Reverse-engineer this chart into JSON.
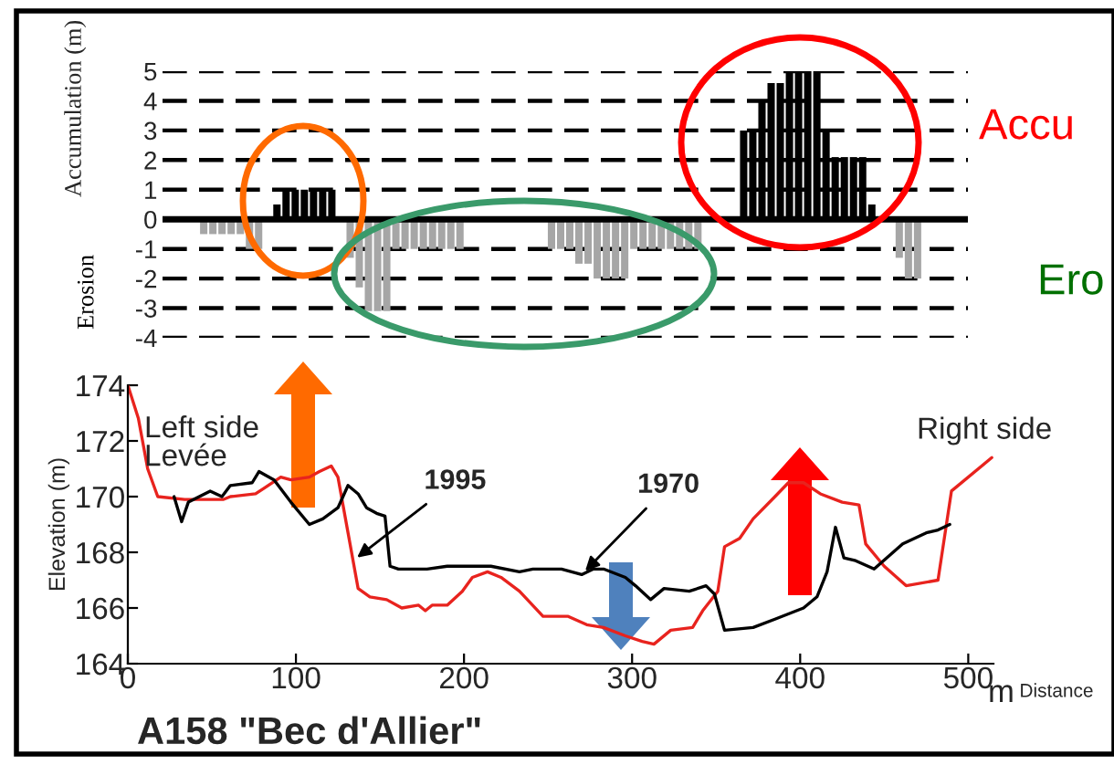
{
  "chart_data": [
    {
      "type": "bar",
      "ylabel": "Accumulation (m)",
      "categories": [
        null,
        null,
        null,
        null,
        null,
        null,
        null,
        null,
        null,
        null,
        null,
        null,
        null,
        null,
        null,
        null,
        null,
        null,
        null,
        null,
        null,
        null,
        null,
        null,
        null,
        null,
        null,
        null,
        null,
        null,
        null,
        null,
        null,
        null,
        null,
        null,
        null,
        null,
        null,
        null,
        null,
        null,
        null,
        null,
        null,
        null,
        null,
        null,
        null,
        null,
        null,
        null,
        null,
        null,
        null,
        null,
        null,
        null,
        null,
        null,
        null,
        null,
        null,
        null,
        null,
        null,
        null,
        null,
        null,
        null,
        null,
        null,
        null,
        null,
        null,
        null,
        null,
        null,
        null,
        null,
        null,
        null,
        null,
        null,
        null,
        null,
        null,
        null
      ],
      "series": [
        {
          "color": "#000000",
          "values": [
            null,
            null,
            null,
            null,
            null,
            null,
            null,
            null,
            null,
            null,
            null,
            null,
            0.5,
            1,
            1,
            1,
            1,
            1,
            1,
            null,
            null,
            null,
            null,
            null,
            null,
            null,
            null,
            null,
            null,
            null,
            null,
            null,
            null,
            null,
            null,
            null,
            null,
            null,
            null,
            null,
            null,
            null,
            null,
            null,
            null,
            null,
            null,
            null,
            null,
            null,
            null,
            null,
            null,
            null,
            null,
            null,
            null,
            null,
            null,
            null,
            null,
            null,
            null,
            3,
            3,
            4,
            4.6,
            4.6,
            5,
            5,
            5,
            5,
            3,
            2.1,
            2.1,
            2.1,
            2.1,
            0.5,
            null,
            null,
            null,
            null,
            null,
            null,
            null,
            null,
            null,
            null
          ]
        },
        {
          "color": "#a6a6a6",
          "values": [
            null,
            null,
            null,
            null,
            -0.5,
            -0.5,
            -0.5,
            -0.5,
            -0.5,
            -1,
            -1,
            null,
            null,
            null,
            null,
            null,
            null,
            null,
            null,
            null,
            -1.3,
            -2.3,
            -3.1,
            -3.1,
            -3.1,
            -1,
            -1,
            -1,
            -1,
            -1,
            -1,
            -1,
            -1,
            null,
            null,
            null,
            null,
            null,
            null,
            null,
            null,
            null,
            -1,
            -1,
            -1,
            -1.5,
            -1.5,
            -2,
            -2,
            -2,
            -2,
            -1,
            -1,
            -1,
            -1,
            -1,
            -1,
            -1,
            -1,
            null,
            null,
            null,
            null,
            null,
            null,
            null,
            null,
            null,
            null,
            null,
            null,
            null,
            null,
            null,
            null,
            null,
            null,
            null,
            null,
            null,
            -1.3,
            -2,
            -2,
            null,
            null,
            null,
            null,
            null
          ]
        }
      ],
      "ylim": [
        -4,
        5
      ],
      "yticks": [
        -4,
        -3,
        -2,
        -1,
        0,
        1,
        2,
        3,
        4,
        5
      ],
      "grid": "y",
      "ref_lines": [
        {
          "axis": "y",
          "value": 0,
          "color": "#000000"
        }
      ],
      "annotations": [
        "Erosion",
        "Accu",
        "Ero"
      ]
    },
    {
      "type": "line",
      "title": "A158 \"Bec d'Allier\"",
      "xlabel": "Distance",
      "ylabel": "Elevation (m)",
      "series": [
        {
          "color": "#e8231e",
          "x": [
            0,
            6.3,
            11.8,
            17.8,
            33.8,
            57,
            61,
            76,
            81,
            91,
            97,
            108,
            114,
            121,
            125,
            131,
            137,
            144,
            154,
            163,
            173,
            177,
            181,
            190,
            199,
            205,
            214,
            222,
            233,
            247,
            262,
            273,
            283,
            296,
            306,
            313,
            323,
            336,
            342,
            351,
            355,
            364,
            372,
            385,
            393,
            402,
            412,
            425,
            435,
            439,
            450,
            463,
            482,
            490,
            514
          ],
          "values": [
            174,
            172.8,
            171,
            170,
            169.9,
            169.9,
            170,
            170.1,
            170.3,
            170.7,
            170.6,
            170.7,
            170.9,
            171.1,
            170.7,
            168.7,
            166.7,
            166.4,
            166.3,
            166,
            166.1,
            165.9,
            166.1,
            166.1,
            166.6,
            167.1,
            167.3,
            167.1,
            166.6,
            165.7,
            165.7,
            165.4,
            165.3,
            165,
            164.8,
            164.7,
            165.2,
            165.3,
            165.9,
            166.6,
            168.2,
            168.5,
            169.2,
            170,
            170.5,
            170.5,
            170.1,
            169.8,
            169.7,
            168.3,
            167.5,
            166.8,
            167,
            170.2,
            171.4
          ]
        },
        {
          "color": "#000000",
          "x": [
            27.5,
            32,
            36,
            49,
            56,
            61,
            74,
            78,
            87,
            97,
            108,
            116,
            125,
            131,
            137,
            142,
            148,
            153,
            156,
            161,
            178,
            190,
            216,
            233,
            241,
            258,
            270,
            277,
            283,
            296,
            302,
            311,
            319,
            334,
            344,
            349,
            355,
            372,
            385,
            402,
            410,
            416,
            421,
            426,
            433,
            444,
            461,
            475,
            482,
            489
          ],
          "values": [
            170,
            169.1,
            169.8,
            170.2,
            170,
            170.4,
            170.5,
            170.9,
            170.6,
            169.8,
            169,
            169.2,
            169.6,
            170.4,
            170.1,
            169.6,
            169.4,
            169.3,
            167.5,
            167.4,
            167.4,
            167.5,
            167.5,
            167.3,
            167.4,
            167.4,
            167.2,
            167.4,
            167.4,
            167.1,
            166.8,
            166.3,
            166.7,
            166.6,
            166.8,
            166.5,
            165.2,
            165.3,
            165.6,
            166,
            166.4,
            167.3,
            168.9,
            167.8,
            167.7,
            167.4,
            168.3,
            168.7,
            168.8,
            169
          ]
        }
      ],
      "xlim": [
        0,
        515
      ],
      "xticks": [
        0,
        100,
        200,
        300,
        400,
        500
      ],
      "ylim": [
        164,
        174
      ],
      "yticks": [
        164,
        166,
        168,
        170,
        172,
        174
      ],
      "annotations": [
        "Left side\nLevée",
        "Right side",
        {
          "text": "1995",
          "x": 134,
          "y": 167.7
        },
        {
          "text": "1970",
          "x": 270,
          "y": 167.2
        },
        "m"
      ]
    }
  ]
}
